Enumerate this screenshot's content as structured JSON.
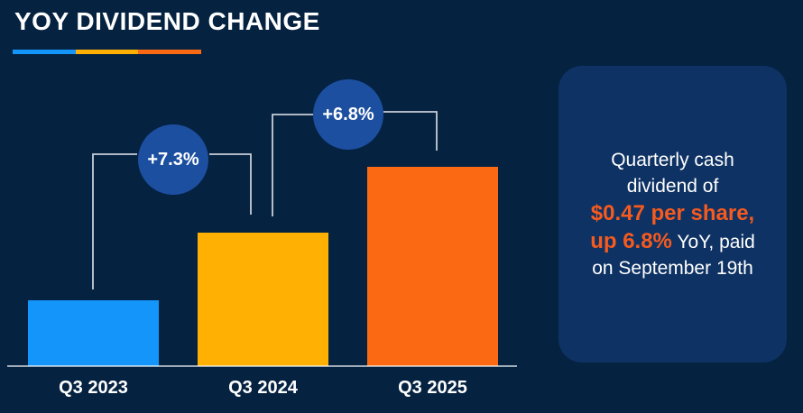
{
  "header": {
    "title": "YOY DIVIDEND CHANGE"
  },
  "chart_data": {
    "type": "bar",
    "title": "YOY DIVIDEND CHANGE",
    "categories": [
      "Q3 2023",
      "Q3 2024",
      "Q3 2025"
    ],
    "series": [
      {
        "name": "Quarterly dividend (relative bar height, px as drawn)",
        "values": [
          73,
          148,
          221
        ]
      }
    ],
    "bar_colors": [
      "#1495F9",
      "#FFB002",
      "#FB6A12"
    ],
    "annotations": [
      {
        "label": "+7.3%",
        "from": "Q3 2023",
        "to": "Q3 2024"
      },
      {
        "label": "+6.8%",
        "from": "Q3 2024",
        "to": "Q3 2025"
      }
    ],
    "known_values": {
      "Q3 2025": "$0.47 per share"
    },
    "axes": "none",
    "grid": false,
    "legend": false
  },
  "callout": {
    "l1": "Quarterly cash",
    "l2": "dividend of",
    "l3": "$0.47 per share,",
    "l4_accent": "up 6.8%",
    "l4_rest": " YoY, paid",
    "l5": "on September 19th"
  },
  "colors": {
    "background": "#052241",
    "card": "#0E3263",
    "badge": "#1C4FA0",
    "bar_blue": "#1495F9",
    "bar_yellow": "#FFB002",
    "bar_orange": "#FB6A12",
    "accent_text": "#F65A1E",
    "title_text": "#FFFFFF"
  }
}
